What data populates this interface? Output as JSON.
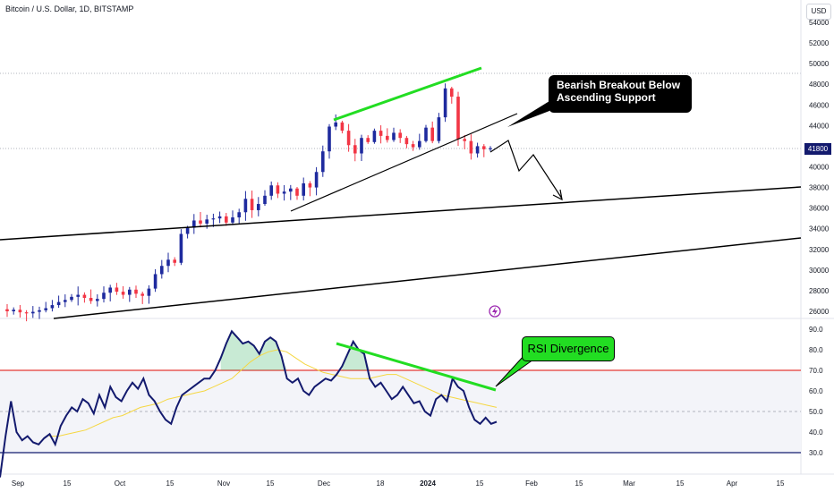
{
  "header": {
    "symbol_title": "Bitcoin / U.S. Dollar, 1D, BITSTAMP",
    "currency_button": "USD"
  },
  "annotations": {
    "bear_line1": "Bearish Breakout Below",
    "bear_line2": "Ascending Support",
    "rsi_label": "RSI Divergence"
  },
  "colors": {
    "up": "#089981",
    "down": "#f23645",
    "volume_candle_up": "#1e2a9e",
    "rsi_line": "#131a6e",
    "rsi_ma": "#f5d742",
    "trend_green": "#22dd22",
    "rsi_band": "#d1d4dc",
    "overbought": "#e53935"
  },
  "chart_data": [
    {
      "type": "candlestick",
      "title": "Bitcoin / U.S. Dollar, 1D, BITSTAMP",
      "y_axis": {
        "ticks": [
          26000,
          28000,
          30000,
          32000,
          34000,
          36000,
          38000,
          40000,
          42000,
          44000,
          46000,
          48000,
          50000,
          52000,
          54000
        ],
        "range": [
          25500,
          55000
        ]
      },
      "x_axis": {
        "ticks": [
          "Sep",
          "15",
          "Oct",
          "15",
          "Nov",
          "15",
          "Dec",
          "18",
          "2024",
          "15",
          "Feb",
          "15",
          "Mar",
          "15",
          "Apr",
          "15"
        ]
      },
      "last_price": "41800",
      "path_close": [
        26000,
        26150,
        25900,
        25800,
        25950,
        26100,
        26300,
        26600,
        26900,
        27100,
        27400,
        27600,
        27300,
        27000,
        27200,
        27800,
        28300,
        27900,
        27600,
        28100,
        27700,
        27500,
        28200,
        29600,
        30400,
        31000,
        30700,
        33500,
        34100,
        34800,
        34500,
        34900,
        35000,
        35200,
        34600,
        35100,
        35600,
        36900,
        35800,
        36400,
        37200,
        38200,
        37400,
        37600,
        37900,
        37200,
        38400,
        38000,
        39500,
        41500,
        43900,
        44300,
        43500,
        42100,
        41300,
        42800,
        42400,
        43500,
        43000,
        42600,
        43300,
        42800,
        42200,
        41900,
        42500,
        43800,
        42500,
        44800,
        47600,
        46800,
        42700,
        42500,
        41300,
        42000,
        41700,
        41800
      ]
    },
    {
      "type": "line",
      "title": "RSI",
      "y_axis": {
        "ticks": [
          30.0,
          40.0,
          50.0,
          60.0,
          70.0,
          80.0,
          90.0
        ],
        "range": [
          27,
          92
        ]
      },
      "series": [
        {
          "values": [
            18,
            38,
            55,
            40,
            36,
            38,
            35,
            34,
            37,
            39,
            34,
            43,
            48,
            52,
            50,
            56,
            54,
            49,
            58,
            52,
            62,
            57,
            55,
            60,
            64,
            61,
            66,
            58,
            55,
            50,
            46,
            44,
            52,
            58,
            60,
            62,
            64,
            66,
            66,
            70,
            76,
            83,
            89,
            86,
            83,
            84,
            82,
            78,
            84,
            86,
            84,
            77,
            66,
            64,
            66,
            60,
            58,
            62,
            64,
            66,
            65,
            68,
            72,
            78,
            84,
            80,
            78,
            66,
            62,
            64,
            60,
            56,
            58,
            62,
            58,
            54,
            55,
            50,
            48,
            56,
            58,
            55,
            66,
            62,
            60,
            52,
            46,
            44,
            47,
            44,
            45
          ]
        },
        {
          "values": [
            38,
            38,
            39,
            40,
            41,
            43,
            45,
            47,
            48,
            50,
            52,
            53,
            54,
            56,
            57,
            58,
            59,
            60,
            62,
            64,
            66,
            70,
            74,
            77,
            79,
            80,
            79,
            76,
            73,
            71,
            69,
            68,
            67,
            66,
            66,
            66,
            67,
            68,
            68,
            66,
            64,
            62,
            60,
            58,
            57,
            56,
            55,
            54,
            53,
            52
          ]
        }
      ],
      "levels": [
        30,
        50,
        70
      ]
    }
  ]
}
